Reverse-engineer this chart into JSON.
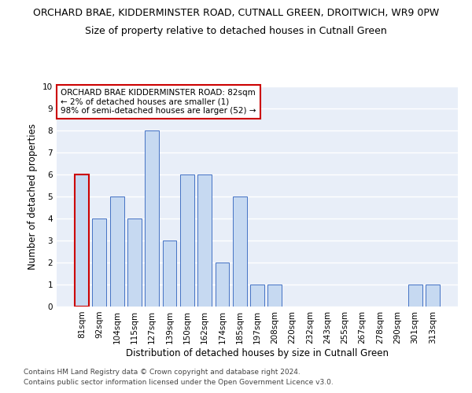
{
  "title_line1": "ORCHARD BRAE, KIDDERMINSTER ROAD, CUTNALL GREEN, DROITWICH, WR9 0PW",
  "title_line2": "Size of property relative to detached houses in Cutnall Green",
  "xlabel": "Distribution of detached houses by size in Cutnall Green",
  "ylabel": "Number of detached properties",
  "categories": [
    "81sqm",
    "92sqm",
    "104sqm",
    "115sqm",
    "127sqm",
    "139sqm",
    "150sqm",
    "162sqm",
    "174sqm",
    "185sqm",
    "197sqm",
    "208sqm",
    "220sqm",
    "232sqm",
    "243sqm",
    "255sqm",
    "267sqm",
    "278sqm",
    "290sqm",
    "301sqm",
    "313sqm"
  ],
  "values": [
    6,
    4,
    5,
    4,
    8,
    3,
    6,
    6,
    2,
    5,
    1,
    1,
    0,
    0,
    0,
    0,
    0,
    0,
    0,
    1,
    1
  ],
  "bar_color": "#c6d9f1",
  "bar_edge_color": "#4472c4",
  "highlight_index": 0,
  "highlight_bar_edge_color": "#cc0000",
  "annotation_text": "ORCHARD BRAE KIDDERMINSTER ROAD: 82sqm\n← 2% of detached houses are smaller (1)\n98% of semi-detached houses are larger (52) →",
  "annotation_box_edge_color": "#cc0000",
  "ylim": [
    0,
    10
  ],
  "yticks": [
    0,
    1,
    2,
    3,
    4,
    5,
    6,
    7,
    8,
    9,
    10
  ],
  "background_color": "#e8eef8",
  "footer_line1": "Contains HM Land Registry data © Crown copyright and database right 2024.",
  "footer_line2": "Contains public sector information licensed under the Open Government Licence v3.0.",
  "title_fontsize": 9,
  "subtitle_fontsize": 9,
  "axis_label_fontsize": 8.5,
  "tick_fontsize": 7.5,
  "annotation_fontsize": 7.5,
  "footer_fontsize": 6.5
}
